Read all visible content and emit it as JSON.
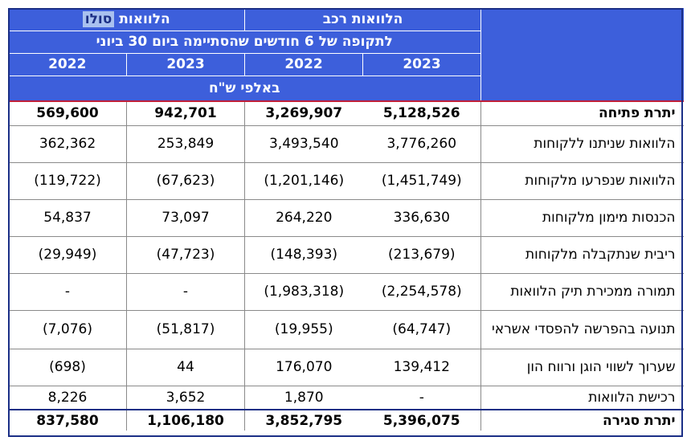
{
  "header": {
    "group_left": "הלוואות סולו",
    "group_left_prefix": "הלוואות ",
    "group_left_highlight": "סולו",
    "group_right": "הלוואות רכב",
    "period": "לתקופה של 6 חודשים שהסתיימה ביום 30 ביוני",
    "years": [
      "2022",
      "2023",
      "2022",
      "2023"
    ],
    "units": "באלפי ש\"ח"
  },
  "rows": [
    {
      "label": "יתרת פתיחה",
      "bold": true,
      "values": [
        "569,600",
        "942,701",
        "3,269,907",
        "5,128,526"
      ]
    },
    {
      "label": "הלוואות שניתנו ללקוחות",
      "bold": false,
      "values": [
        "362,362",
        "253,849",
        "3,493,540",
        "3,776,260"
      ]
    },
    {
      "label": "הלוואות שנפרעו מלקוחות",
      "bold": false,
      "values": [
        "(119,722)",
        "(67,623)",
        "(1,201,146)",
        "(1,451,749)"
      ]
    },
    {
      "label": "הכנסות מימון מלקוחות",
      "bold": false,
      "values": [
        "54,837",
        "73,097",
        "264,220",
        "336,630"
      ]
    },
    {
      "label": "ריבית שנתקבלה מלקוחות",
      "bold": false,
      "values": [
        "(29,949)",
        "(47,723)",
        "(148,393)",
        "(213,679)"
      ]
    },
    {
      "label": "תמורה ממכירת תיק הלוואות",
      "bold": false,
      "values": [
        "-",
        "-",
        "(1,983,318)",
        "(2,254,578)"
      ]
    },
    {
      "label": "תנועה בהפרשה להפסדי אשראי",
      "bold": false,
      "values": [
        "(7,076)",
        "(51,817)",
        "(19,955)",
        "(64,747)"
      ]
    },
    {
      "label": "שערוך לשווי הוגן ורווח הון",
      "bold": false,
      "values": [
        "(698)",
        "44",
        "176,070",
        "139,412"
      ]
    },
    {
      "label": "רכישת הלוואות",
      "bold": false,
      "values": [
        "8,226",
        "3,652",
        "1,870",
        "-"
      ]
    },
    {
      "label": "יתרת סגירה",
      "bold": true,
      "values": [
        "837,580",
        "1,106,180",
        "3,852,795",
        "5,396,075"
      ]
    }
  ]
}
